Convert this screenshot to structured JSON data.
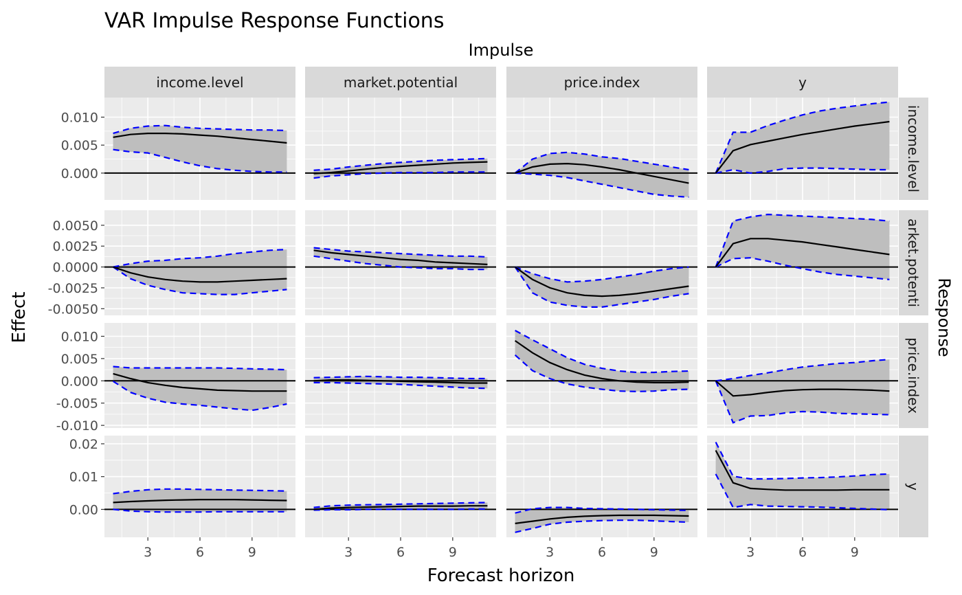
{
  "chart_data": {
    "type": "line",
    "title": "VAR Impulse Response Functions",
    "xlabel": "Forecast horizon",
    "ylabel": "Effect",
    "col_strip_label": "Impulse",
    "row_strip_label": "Response",
    "impulses": [
      "income.level",
      "market.potential",
      "price.index",
      "y"
    ],
    "responses": [
      "income.level",
      "market.potential",
      "price.index",
      "y"
    ],
    "response_strip_text": [
      "income.level",
      "arket.potenti",
      "price.index",
      "y"
    ],
    "x": [
      1,
      2,
      3,
      4,
      5,
      6,
      7,
      8,
      9,
      10,
      11
    ],
    "xlim": [
      0.5,
      11.5
    ],
    "x_ticks": [
      3,
      6,
      9
    ],
    "x_tick_labels": [
      "3",
      "6",
      "9"
    ],
    "series_styles": {
      "irf": {
        "color": "#000000",
        "line": "solid"
      },
      "bounds": {
        "color": "#0000ff",
        "line": "dashed"
      },
      "band_fill": "#bebebe",
      "zero_line": "#000000",
      "panel_bg": "#ebebeb",
      "strip_bg": "#d9d9d9"
    },
    "rows": [
      {
        "response": "income.level",
        "ylim": [
          -0.0048,
          0.0135
        ],
        "y_ticks": [
          0,
          0.005,
          0.01
        ],
        "y_tick_labels": [
          "0.000",
          "0.005",
          "0.010"
        ],
        "panels": [
          {
            "impulse": "income.level",
            "irf": [
              0.0064,
              0.0069,
              0.0071,
              0.0071,
              0.007,
              0.0068,
              0.0066,
              0.0063,
              0.006,
              0.0057,
              0.0054
            ],
            "lower": [
              0.0042,
              0.0038,
              0.0036,
              0.0028,
              0.002,
              0.0013,
              0.0008,
              0.0005,
              0.0003,
              0.0002,
              0.0002
            ],
            "upper": [
              0.0071,
              0.008,
              0.0084,
              0.0085,
              0.0082,
              0.008,
              0.0079,
              0.0078,
              0.0077,
              0.0077,
              0.0076
            ]
          },
          {
            "impulse": "market.potential",
            "irf": [
              -0.0001,
              0.0001,
              0.0004,
              0.0007,
              0.001,
              0.0012,
              0.0014,
              0.0016,
              0.0018,
              0.0019,
              0.002
            ],
            "lower": [
              -0.0009,
              -0.0005,
              -0.0003,
              -0.0001,
              0.0,
              0.0001,
              0.0001,
              0.0001,
              0.0002,
              0.0002,
              0.0002
            ],
            "upper": [
              0.0005,
              0.0007,
              0.0011,
              0.0014,
              0.0017,
              0.0019,
              0.0021,
              0.0023,
              0.0024,
              0.0025,
              0.0026
            ]
          },
          {
            "impulse": "price.index",
            "irf": [
              0.0,
              0.0011,
              0.0016,
              0.0017,
              0.0015,
              0.0011,
              0.0006,
              0.0,
              -0.0006,
              -0.0012,
              -0.0018
            ],
            "lower": [
              0.0,
              -0.0002,
              -0.0004,
              -0.0008,
              -0.0014,
              -0.002,
              -0.0026,
              -0.0032,
              -0.0038,
              -0.0041,
              -0.0043
            ],
            "upper": [
              0.0,
              0.0025,
              0.0035,
              0.0037,
              0.0034,
              0.0029,
              0.0026,
              0.0021,
              0.0016,
              0.0011,
              0.0006
            ]
          },
          {
            "impulse": "y",
            "irf": [
              0.0,
              0.004,
              0.0051,
              0.0057,
              0.0063,
              0.0069,
              0.0074,
              0.0079,
              0.0084,
              0.0088,
              0.0092
            ],
            "lower": [
              0.0,
              0.0006,
              0.0,
              0.0003,
              0.0008,
              0.0009,
              0.0009,
              0.0008,
              0.0007,
              0.0006,
              0.0006
            ],
            "upper": [
              0.0,
              0.0073,
              0.0073,
              0.0085,
              0.0095,
              0.0104,
              0.0111,
              0.0116,
              0.012,
              0.0124,
              0.0127
            ]
          }
        ]
      },
      {
        "response": "market.potential",
        "ylim": [
          -0.0058,
          0.0068
        ],
        "y_ticks": [
          -0.005,
          -0.0025,
          0,
          0.0025,
          0.005
        ],
        "y_tick_labels": [
          "-0.0050",
          "-0.0025",
          "0.0000",
          "0.0025",
          "0.0050"
        ],
        "panels": [
          {
            "impulse": "income.level",
            "irf": [
              0.0,
              -0.0007,
              -0.0012,
              -0.0015,
              -0.0017,
              -0.0018,
              -0.0018,
              -0.0017,
              -0.0016,
              -0.0015,
              -0.0014
            ],
            "lower": [
              0.0,
              -0.0014,
              -0.0022,
              -0.0027,
              -0.0031,
              -0.0032,
              -0.0033,
              -0.0033,
              -0.0031,
              -0.0029,
              -0.0027
            ],
            "upper": [
              0.0,
              0.0004,
              0.0007,
              0.0008,
              0.001,
              0.0011,
              0.0013,
              0.0016,
              0.0018,
              0.002,
              0.0021
            ]
          },
          {
            "impulse": "market.potential",
            "irf": [
              0.002,
              0.0017,
              0.0015,
              0.0013,
              0.0011,
              0.0009,
              0.0008,
              0.0006,
              0.0005,
              0.0004,
              0.0003
            ],
            "lower": [
              0.0013,
              0.001,
              0.0007,
              0.0004,
              0.0002,
              0.0,
              -0.0001,
              -0.0002,
              -0.0002,
              -0.0003,
              -0.0003
            ],
            "upper": [
              0.0023,
              0.0021,
              0.0019,
              0.0018,
              0.0017,
              0.0016,
              0.0015,
              0.0014,
              0.0013,
              0.0013,
              0.0012
            ]
          },
          {
            "impulse": "price.index",
            "irf": [
              0.0,
              -0.0015,
              -0.0025,
              -0.0031,
              -0.0034,
              -0.0035,
              -0.0034,
              -0.0032,
              -0.0029,
              -0.0026,
              -0.0023
            ],
            "lower": [
              0.0,
              -0.0031,
              -0.0042,
              -0.0046,
              -0.0048,
              -0.0048,
              -0.0045,
              -0.0042,
              -0.0039,
              -0.0035,
              -0.0032
            ],
            "upper": [
              0.0,
              -0.0008,
              -0.0014,
              -0.0018,
              -0.0017,
              -0.0015,
              -0.0012,
              -0.0009,
              -0.0005,
              -0.0002,
              0.0
            ]
          },
          {
            "impulse": "y",
            "irf": [
              0.0,
              0.0028,
              0.0034,
              0.0034,
              0.0032,
              0.003,
              0.0027,
              0.0024,
              0.0021,
              0.0018,
              0.0015
            ],
            "lower": [
              0.0,
              0.001,
              0.0011,
              0.0007,
              0.0002,
              -0.0002,
              -0.0006,
              -0.0009,
              -0.0011,
              -0.0013,
              -0.0015
            ],
            "upper": [
              0.0,
              0.0055,
              0.006,
              0.0063,
              0.0062,
              0.0061,
              0.006,
              0.0059,
              0.0058,
              0.0057,
              0.0055
            ]
          }
        ]
      },
      {
        "response": "price.index",
        "ylim": [
          -0.0106,
          0.013
        ],
        "y_ticks": [
          -0.01,
          -0.005,
          0,
          0.005,
          0.01
        ],
        "y_tick_labels": [
          "-0.010",
          "-0.005",
          "0.000",
          "0.005",
          "0.010"
        ],
        "panels": [
          {
            "impulse": "income.level",
            "irf": [
              0.0016,
              0.0005,
              -0.0004,
              -0.001,
              -0.0015,
              -0.0018,
              -0.0021,
              -0.0022,
              -0.0023,
              -0.0023,
              -0.0023
            ],
            "lower": [
              -0.0001,
              -0.0026,
              -0.0039,
              -0.0048,
              -0.0052,
              -0.0055,
              -0.0059,
              -0.0063,
              -0.0066,
              -0.006,
              -0.0052
            ],
            "upper": [
              0.0032,
              0.0029,
              0.0029,
              0.0029,
              0.0029,
              0.0029,
              0.0029,
              0.0028,
              0.0027,
              0.0026,
              0.0025
            ]
          },
          {
            "impulse": "market.potential",
            "irf": [
              0.0,
              0.0002,
              0.0002,
              0.0001,
              0.0,
              -0.0001,
              -0.0002,
              -0.0003,
              -0.0004,
              -0.0005,
              -0.0005
            ],
            "lower": [
              -0.0004,
              -0.0004,
              -0.0005,
              -0.0006,
              -0.0007,
              -0.0008,
              -0.001,
              -0.0012,
              -0.0014,
              -0.0016,
              -0.0017
            ],
            "upper": [
              0.0007,
              0.0008,
              0.0009,
              0.001,
              0.0009,
              0.0008,
              0.0008,
              0.0007,
              0.0006,
              0.0005,
              0.0005
            ]
          },
          {
            "impulse": "price.index",
            "irf": [
              0.009,
              0.0063,
              0.0041,
              0.0025,
              0.0013,
              0.0005,
              0.0,
              -0.0003,
              -0.0004,
              -0.0004,
              -0.0003
            ],
            "lower": [
              0.0058,
              0.0023,
              0.0005,
              -0.0007,
              -0.0014,
              -0.0019,
              -0.0023,
              -0.0024,
              -0.0023,
              -0.002,
              -0.0019
            ],
            "upper": [
              0.0113,
              0.0092,
              0.0072,
              0.0052,
              0.0037,
              0.0028,
              0.0022,
              0.0019,
              0.0019,
              0.0021,
              0.0022
            ]
          },
          {
            "impulse": "y",
            "irf": [
              0.0,
              -0.0034,
              -0.0031,
              -0.0026,
              -0.0022,
              -0.002,
              -0.0019,
              -0.0019,
              -0.002,
              -0.0021,
              -0.0023
            ],
            "lower": [
              0.0,
              -0.0094,
              -0.0079,
              -0.0078,
              -0.0072,
              -0.0069,
              -0.007,
              -0.0073,
              -0.0074,
              -0.0075,
              -0.0076
            ],
            "upper": [
              0.0,
              0.0005,
              0.0012,
              0.0018,
              0.0025,
              0.0031,
              0.0035,
              0.0039,
              0.0041,
              0.0045,
              0.0048
            ]
          }
        ]
      },
      {
        "response": "y",
        "ylim": [
          -0.0085,
          0.0225
        ],
        "y_ticks": [
          0,
          0.01,
          0.02
        ],
        "y_tick_labels": [
          "0.00",
          "0.01",
          "0.02"
        ],
        "panels": [
          {
            "impulse": "income.level",
            "irf": [
              0.0021,
              0.0024,
              0.0026,
              0.0028,
              0.0029,
              0.003,
              0.003,
              0.003,
              0.0029,
              0.0028,
              0.0027
            ],
            "lower": [
              0.0,
              -0.0005,
              -0.0007,
              -0.0008,
              -0.0008,
              -0.0008,
              -0.0007,
              -0.0007,
              -0.0007,
              -0.0007,
              -0.0007
            ],
            "upper": [
              0.0048,
              0.0055,
              0.006,
              0.0062,
              0.0062,
              0.0061,
              0.006,
              0.0059,
              0.0058,
              0.0057,
              0.0056
            ]
          },
          {
            "impulse": "market.potential",
            "irf": [
              0.0,
              0.0004,
              0.0006,
              0.0007,
              0.0008,
              0.0009,
              0.001,
              0.001,
              0.001,
              0.0011,
              0.0011
            ],
            "lower": [
              -0.0002,
              -0.0001,
              -0.0001,
              0.0,
              0.0,
              0.0,
              0.0,
              0.0,
              0.0,
              0.0001,
              0.0001
            ],
            "upper": [
              0.0006,
              0.0011,
              0.0013,
              0.0014,
              0.0015,
              0.0016,
              0.0017,
              0.0018,
              0.0019,
              0.002,
              0.0021
            ]
          },
          {
            "impulse": "price.index",
            "irf": [
              -0.0043,
              -0.0036,
              -0.0029,
              -0.0024,
              -0.0021,
              -0.0019,
              -0.0018,
              -0.0018,
              -0.0018,
              -0.0019,
              -0.002
            ],
            "lower": [
              -0.007,
              -0.0058,
              -0.0045,
              -0.0039,
              -0.0036,
              -0.0034,
              -0.0033,
              -0.0033,
              -0.0035,
              -0.0037,
              -0.0039
            ],
            "upper": [
              -0.0011,
              0.0002,
              0.0006,
              0.0006,
              0.0003,
              0.0002,
              0.0001,
              0.0,
              -0.0001,
              -0.0002,
              -0.0003
            ]
          },
          {
            "impulse": "y",
            "irf": [
              0.018,
              0.0081,
              0.0064,
              0.0061,
              0.0059,
              0.0059,
              0.0059,
              0.0059,
              0.006,
              0.006,
              0.006
            ],
            "lower": [
              0.0108,
              0.0006,
              0.0015,
              0.001,
              0.0009,
              0.0008,
              0.0007,
              0.0005,
              0.0003,
              0.0001,
              -0.0001
            ],
            "upper": [
              0.0205,
              0.0101,
              0.0093,
              0.0093,
              0.0094,
              0.0096,
              0.0097,
              0.0099,
              0.0102,
              0.0106,
              0.0108
            ]
          }
        ]
      }
    ]
  }
}
